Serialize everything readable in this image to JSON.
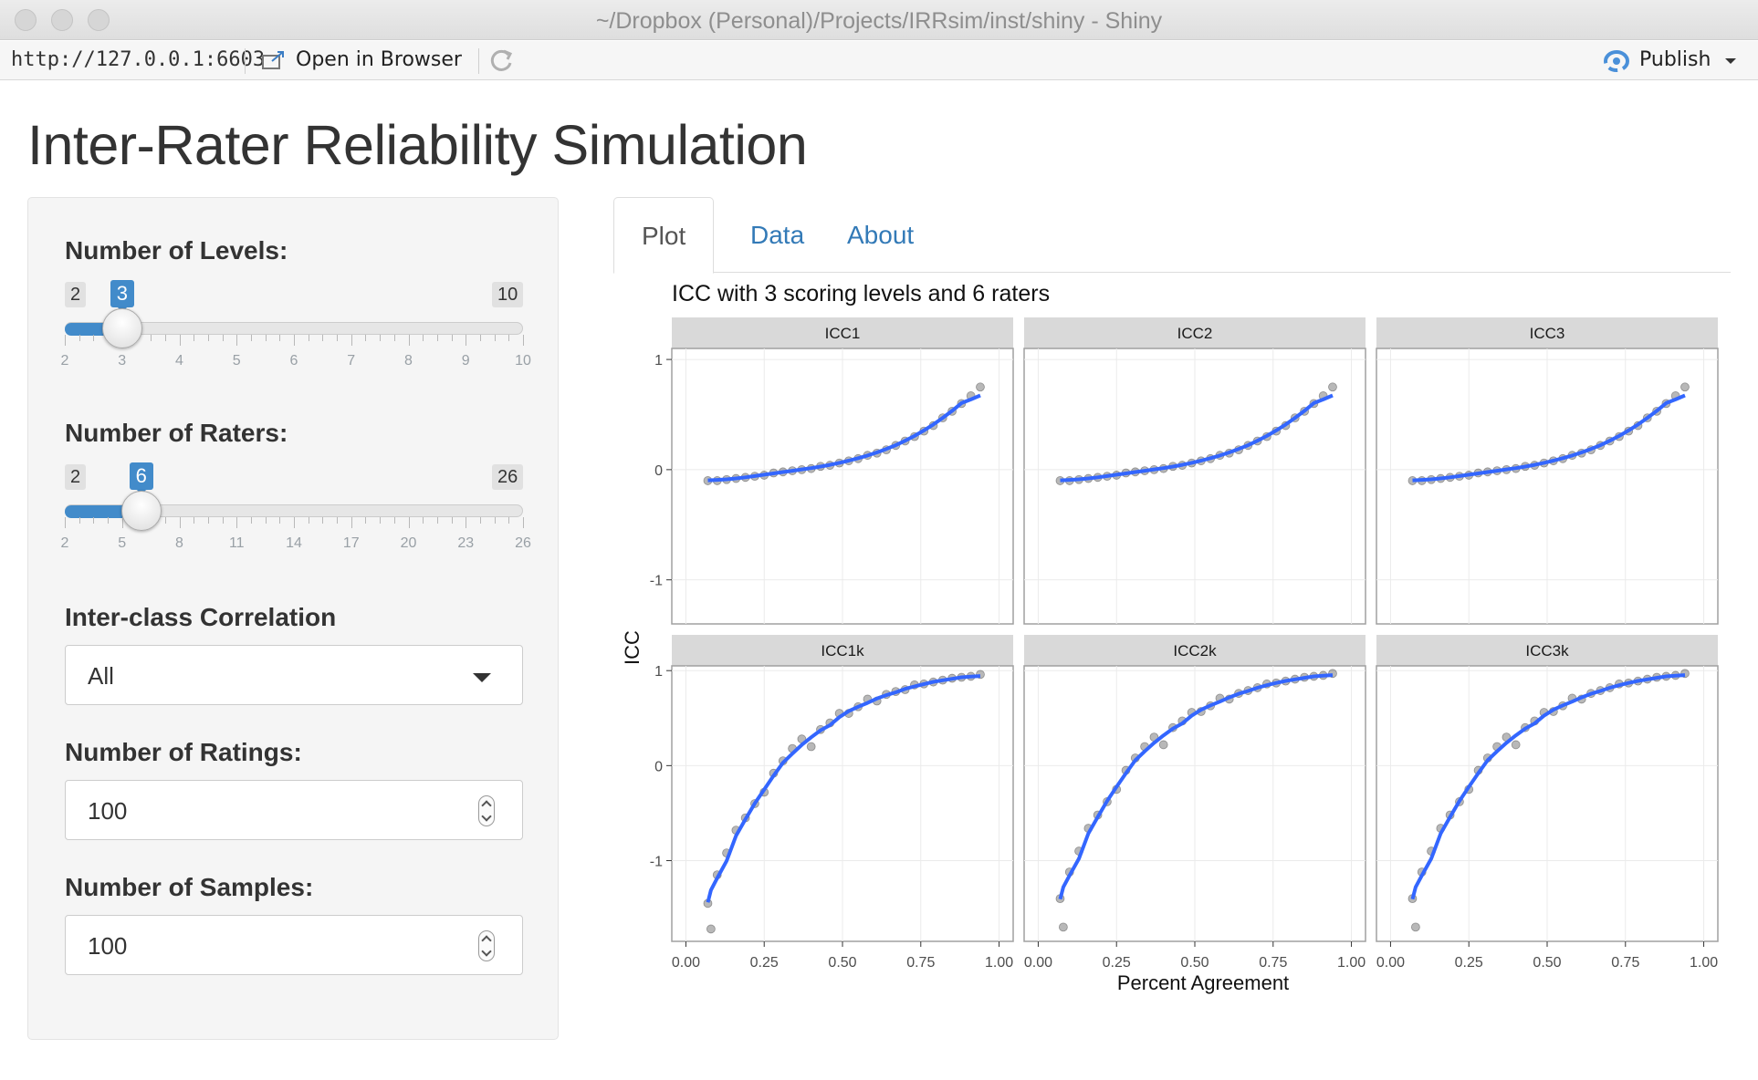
{
  "window": {
    "title": "~/Dropbox (Personal)/Projects/IRRsim/inst/shiny - Shiny"
  },
  "toolbar": {
    "url": "http://127.0.0.1:6603",
    "open_label": "Open in Browser",
    "publish_label": "Publish"
  },
  "page": {
    "title": "Inter-Rater Reliability Simulation"
  },
  "sidebar": {
    "levels": {
      "label": "Number of Levels:",
      "min": "2",
      "max": "10",
      "value": "3",
      "fraction": 0.125,
      "ticks": [
        "2",
        "3",
        "4",
        "5",
        "6",
        "7",
        "8",
        "9",
        "10"
      ]
    },
    "raters": {
      "label": "Number of Raters:",
      "min": "2",
      "max": "26",
      "value": "6",
      "fraction": 0.1667,
      "ticks": [
        "2",
        "5",
        "8",
        "11",
        "14",
        "17",
        "20",
        "23",
        "26"
      ]
    },
    "icc": {
      "label": "Inter-class Correlation",
      "selected": "All"
    },
    "ratings": {
      "label": "Number of Ratings:",
      "value": "100"
    },
    "samples": {
      "label": "Number of Samples:",
      "value": "100"
    }
  },
  "tabs": [
    {
      "label": "Plot",
      "active": true
    },
    {
      "label": "Data",
      "active": false
    },
    {
      "label": "About",
      "active": false
    }
  ],
  "colors": {
    "accent": "#428bca",
    "smooth_line": "#3366ff",
    "strip": "#d9d9d9",
    "point": "#333333"
  },
  "chart_data": {
    "type": "scatter",
    "title": "ICC with 3 scoring levels and 6 raters",
    "xlabel": "Percent Agreement",
    "ylabel": "ICC",
    "xlim": [
      0,
      1
    ],
    "x_ticks": [
      "0.00",
      "0.25",
      "0.50",
      "0.75",
      "1.00"
    ],
    "y_ticks_top": [
      "1",
      "0",
      "-1"
    ],
    "y_ticks_bottom": [
      "1",
      "0",
      "-1"
    ],
    "ylim_top": [
      -1.4,
      1.1
    ],
    "ylim_bottom": [
      -1.85,
      1.05
    ],
    "facets": [
      {
        "name": "ICC1",
        "type": "single",
        "x": [
          0.07,
          0.1,
          0.13,
          0.16,
          0.19,
          0.22,
          0.25,
          0.28,
          0.31,
          0.34,
          0.37,
          0.4,
          0.43,
          0.46,
          0.49,
          0.52,
          0.55,
          0.58,
          0.61,
          0.64,
          0.67,
          0.7,
          0.73,
          0.76,
          0.79,
          0.82,
          0.85,
          0.88,
          0.91,
          0.94
        ],
        "y": [
          -0.1,
          -0.1,
          -0.09,
          -0.08,
          -0.07,
          -0.06,
          -0.05,
          -0.03,
          -0.02,
          -0.01,
          0.0,
          0.01,
          0.03,
          0.04,
          0.06,
          0.08,
          0.1,
          0.13,
          0.15,
          0.18,
          0.22,
          0.26,
          0.3,
          0.35,
          0.4,
          0.47,
          0.53,
          0.6,
          0.67,
          0.75
        ]
      },
      {
        "name": "ICC2",
        "type": "single",
        "x": [
          0.07,
          0.1,
          0.13,
          0.16,
          0.19,
          0.22,
          0.25,
          0.28,
          0.31,
          0.34,
          0.37,
          0.4,
          0.43,
          0.46,
          0.49,
          0.52,
          0.55,
          0.58,
          0.61,
          0.64,
          0.67,
          0.7,
          0.73,
          0.76,
          0.79,
          0.82,
          0.85,
          0.88,
          0.91,
          0.94
        ],
        "y": [
          -0.1,
          -0.1,
          -0.09,
          -0.08,
          -0.07,
          -0.06,
          -0.05,
          -0.03,
          -0.02,
          -0.01,
          0.0,
          0.01,
          0.03,
          0.04,
          0.06,
          0.08,
          0.1,
          0.13,
          0.15,
          0.18,
          0.22,
          0.26,
          0.3,
          0.35,
          0.4,
          0.47,
          0.53,
          0.6,
          0.67,
          0.75
        ]
      },
      {
        "name": "ICC3",
        "type": "single",
        "x": [
          0.07,
          0.1,
          0.13,
          0.16,
          0.19,
          0.22,
          0.25,
          0.28,
          0.31,
          0.34,
          0.37,
          0.4,
          0.43,
          0.46,
          0.49,
          0.52,
          0.55,
          0.58,
          0.61,
          0.64,
          0.67,
          0.7,
          0.73,
          0.76,
          0.79,
          0.82,
          0.85,
          0.88,
          0.91,
          0.94
        ],
        "y": [
          -0.1,
          -0.1,
          -0.09,
          -0.08,
          -0.07,
          -0.06,
          -0.05,
          -0.03,
          -0.02,
          -0.01,
          0.0,
          0.01,
          0.03,
          0.04,
          0.06,
          0.08,
          0.1,
          0.13,
          0.15,
          0.18,
          0.22,
          0.26,
          0.3,
          0.35,
          0.4,
          0.47,
          0.53,
          0.6,
          0.67,
          0.75
        ]
      },
      {
        "name": "ICC1k",
        "type": "average",
        "x": [
          0.07,
          0.08,
          0.1,
          0.13,
          0.16,
          0.19,
          0.22,
          0.25,
          0.28,
          0.31,
          0.34,
          0.37,
          0.4,
          0.43,
          0.46,
          0.49,
          0.52,
          0.55,
          0.58,
          0.61,
          0.64,
          0.67,
          0.7,
          0.73,
          0.76,
          0.79,
          0.82,
          0.85,
          0.88,
          0.91,
          0.94
        ],
        "y": [
          -1.45,
          -1.72,
          -1.15,
          -0.92,
          -0.68,
          -0.55,
          -0.4,
          -0.28,
          -0.08,
          0.05,
          0.18,
          0.28,
          0.2,
          0.38,
          0.45,
          0.55,
          0.55,
          0.62,
          0.7,
          0.68,
          0.75,
          0.78,
          0.8,
          0.85,
          0.86,
          0.88,
          0.9,
          0.92,
          0.93,
          0.94,
          0.96
        ]
      },
      {
        "name": "ICC2k",
        "type": "average",
        "x": [
          0.07,
          0.08,
          0.1,
          0.13,
          0.16,
          0.19,
          0.22,
          0.25,
          0.28,
          0.31,
          0.34,
          0.37,
          0.4,
          0.43,
          0.46,
          0.49,
          0.52,
          0.55,
          0.58,
          0.61,
          0.64,
          0.67,
          0.7,
          0.73,
          0.76,
          0.79,
          0.82,
          0.85,
          0.88,
          0.91,
          0.94
        ],
        "y": [
          -1.4,
          -1.7,
          -1.12,
          -0.9,
          -0.66,
          -0.52,
          -0.38,
          -0.25,
          -0.05,
          0.08,
          0.2,
          0.3,
          0.22,
          0.4,
          0.47,
          0.56,
          0.57,
          0.63,
          0.71,
          0.7,
          0.76,
          0.79,
          0.82,
          0.86,
          0.87,
          0.89,
          0.91,
          0.93,
          0.94,
          0.95,
          0.97
        ]
      },
      {
        "name": "ICC3k",
        "type": "average",
        "x": [
          0.07,
          0.08,
          0.1,
          0.13,
          0.16,
          0.19,
          0.22,
          0.25,
          0.28,
          0.31,
          0.34,
          0.37,
          0.4,
          0.43,
          0.46,
          0.49,
          0.52,
          0.55,
          0.58,
          0.61,
          0.64,
          0.67,
          0.7,
          0.73,
          0.76,
          0.79,
          0.82,
          0.85,
          0.88,
          0.91,
          0.94
        ],
        "y": [
          -1.4,
          -1.7,
          -1.12,
          -0.9,
          -0.66,
          -0.52,
          -0.38,
          -0.25,
          -0.05,
          0.08,
          0.2,
          0.3,
          0.22,
          0.4,
          0.47,
          0.56,
          0.57,
          0.63,
          0.71,
          0.7,
          0.76,
          0.79,
          0.82,
          0.86,
          0.87,
          0.89,
          0.91,
          0.93,
          0.94,
          0.95,
          0.97
        ]
      }
    ]
  }
}
